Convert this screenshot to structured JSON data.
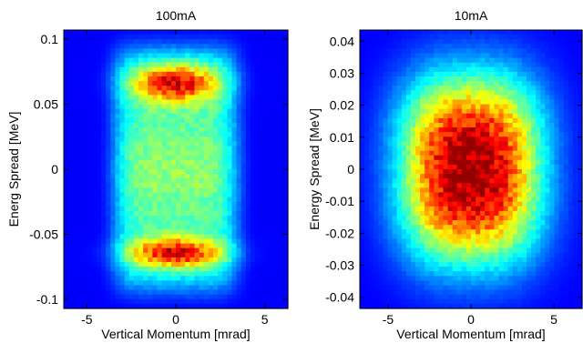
{
  "chart_data": [
    {
      "type": "heatmap",
      "title": "100mA",
      "xlabel": "Vertical Momentum [mrad]",
      "ylabel": "Energ Spread [MeV]",
      "xlim": [
        -6.3,
        6.3
      ],
      "ylim": [
        -0.107,
        0.107
      ],
      "xticks": [
        {
          "value": -5,
          "label": "-5"
        },
        {
          "value": 0,
          "label": "0"
        },
        {
          "value": 5,
          "label": "5"
        }
      ],
      "yticks": [
        {
          "value": 0.1,
          "label": "0.1"
        },
        {
          "value": 0.05,
          "label": "0.05"
        },
        {
          "value": 0,
          "label": "0"
        },
        {
          "value": -0.05,
          "label": "-0.05"
        },
        {
          "value": -0.1,
          "label": "-0.1"
        }
      ],
      "colormap": "jet",
      "grid": false,
      "distribution": {
        "kind": "double-lobe",
        "lobe_centers_y": [
          0.07,
          -0.068
        ],
        "lobe_center_x": 0
      }
    },
    {
      "type": "heatmap",
      "title": "10mA",
      "xlabel": "Vertical Momentum [mrad]",
      "ylabel": "Energy Spread [MeV]",
      "xlim": [
        -6.7,
        6.7
      ],
      "ylim": [
        -0.0435,
        0.0435
      ],
      "xticks": [
        {
          "value": -5,
          "label": "-5"
        },
        {
          "value": 0,
          "label": "0"
        },
        {
          "value": 5,
          "label": "5"
        }
      ],
      "yticks": [
        {
          "value": 0.04,
          "label": "0.04"
        },
        {
          "value": 0.03,
          "label": "0.03"
        },
        {
          "value": 0.02,
          "label": "0.02"
        },
        {
          "value": 0.01,
          "label": "0.01"
        },
        {
          "value": 0,
          "label": "0"
        },
        {
          "value": -0.01,
          "label": "-0.01"
        },
        {
          "value": -0.02,
          "label": "-0.02"
        },
        {
          "value": -0.03,
          "label": "-0.03"
        },
        {
          "value": -0.04,
          "label": "-0.04"
        }
      ],
      "colormap": "jet",
      "grid": false,
      "distribution": {
        "kind": "single-gaussian",
        "center": [
          0,
          0
        ]
      }
    }
  ]
}
